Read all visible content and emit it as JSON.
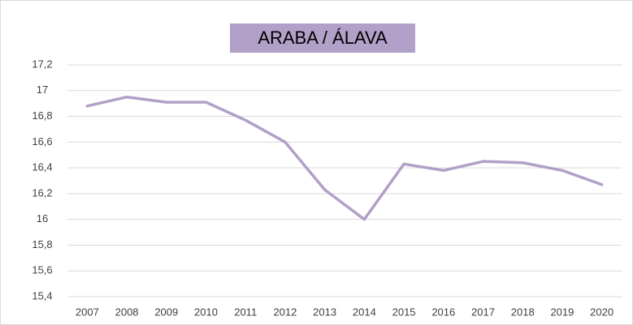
{
  "chart_data": {
    "type": "line",
    "title": "ARABA / ÁLAVA",
    "categories": [
      "2007",
      "2008",
      "2009",
      "2010",
      "2011",
      "2012",
      "2013",
      "2014",
      "2015",
      "2016",
      "2017",
      "2018",
      "2019",
      "2020"
    ],
    "series": [
      {
        "name": "ARABA / ÁLAVA",
        "color": "#b1a0c7",
        "values": [
          16.88,
          16.95,
          16.91,
          16.91,
          16.77,
          16.6,
          16.23,
          16.0,
          16.43,
          16.38,
          16.45,
          16.44,
          16.38,
          16.27
        ]
      }
    ],
    "ylim": [
      15.4,
      17.2
    ],
    "yticks": [
      {
        "value": 15.4,
        "label": "15,4"
      },
      {
        "value": 15.6,
        "label": "15,6"
      },
      {
        "value": 15.8,
        "label": "15,8"
      },
      16,
      {
        "value": 16.2,
        "label": "16,2"
      },
      {
        "value": 16.4,
        "label": "16,4"
      },
      {
        "value": 16.6,
        "label": "16,6"
      },
      {
        "value": 16.8,
        "label": "16,8"
      },
      17,
      {
        "value": 17.2,
        "label": "17,2"
      }
    ],
    "grid": true
  }
}
